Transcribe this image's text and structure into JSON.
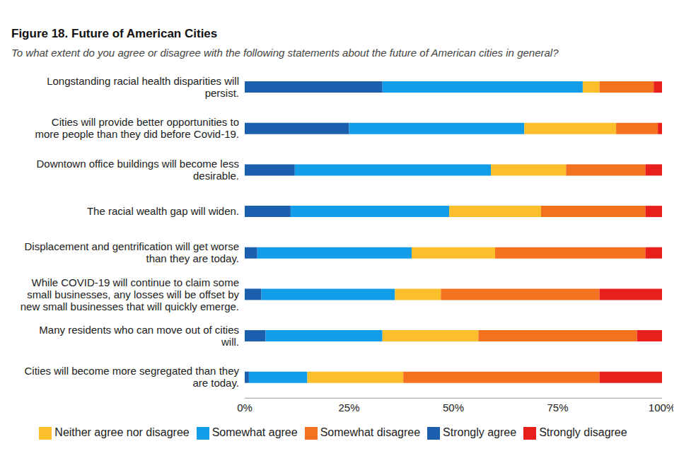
{
  "chart_data": {
    "type": "bar",
    "title": "Figure 18. Future of American Cities",
    "subtitle": "To what extent do you agree or disagree with the following statements about the future of American cities in general?",
    "orientation": "horizontal",
    "stacked": true,
    "grid": false,
    "legend": "bottom",
    "data_labels": false,
    "categories": [
      "Longstanding racial health disparities will persist.",
      "Cities will provide better opportunities to more people than they did before Covid-19.",
      "Downtown office buildings will become less desirable.",
      "The racial wealth gap will widen.",
      "Displacement and gentrification will get worse than they are today.",
      "While COVID-19 will continue to claim some small businesses, any losses will be offset by new small businesses that will quickly emerge.",
      "Many residents who can move out of cities will.",
      "Cities will become more segregated than they are today."
    ],
    "series": [
      {
        "name": "Strongly agree",
        "color": "#1b5fae",
        "values": [
          33,
          25,
          12,
          11,
          3,
          4,
          5,
          1
        ]
      },
      {
        "name": "Somewhat agree",
        "color": "#139ce8",
        "values": [
          48,
          42,
          47,
          38,
          37,
          32,
          28,
          14
        ]
      },
      {
        "name": "Neither agree nor disagree",
        "color": "#fbbf2c",
        "values": [
          4,
          22,
          18,
          22,
          20,
          11,
          23,
          23
        ]
      },
      {
        "name": "Somewhat disagree",
        "color": "#f4711f",
        "values": [
          13,
          10,
          19,
          25,
          36,
          38,
          38,
          47
        ]
      },
      {
        "name": "Strongly disagree",
        "color": "#e8201c",
        "values": [
          2,
          1,
          4,
          4,
          4,
          15,
          6,
          15
        ]
      }
    ],
    "xlim": [
      0,
      100
    ],
    "xticks": [
      {
        "value": 0,
        "label": "0%"
      },
      {
        "value": 25,
        "label": "25%"
      },
      {
        "value": 50,
        "label": "50%"
      },
      {
        "value": 75,
        "label": "75%"
      },
      {
        "value": 100,
        "label": "100%"
      }
    ]
  }
}
